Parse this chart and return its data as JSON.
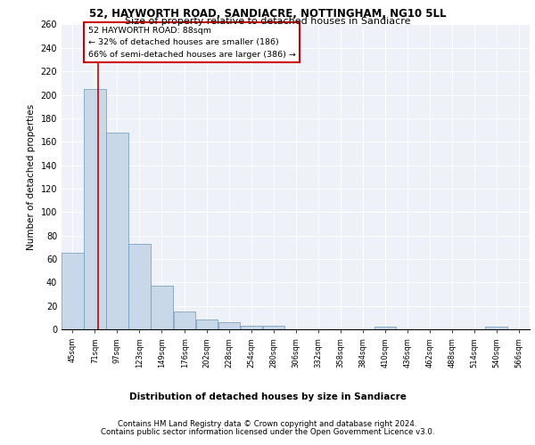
{
  "title1": "52, HAYWORTH ROAD, SANDIACRE, NOTTINGHAM, NG10 5LL",
  "title2": "Size of property relative to detached houses in Sandiacre",
  "xlabel": "Distribution of detached houses by size in Sandiacre",
  "ylabel": "Number of detached properties",
  "footer1": "Contains HM Land Registry data © Crown copyright and database right 2024.",
  "footer2": "Contains public sector information licensed under the Open Government Licence v3.0.",
  "annotation_line1": "52 HAYWORTH ROAD: 88sqm",
  "annotation_line2": "← 32% of detached houses are smaller (186)",
  "annotation_line3": "66% of semi-detached houses are larger (386) →",
  "property_size": 88,
  "bar_left_edges": [
    45,
    71,
    97,
    123,
    149,
    176,
    202,
    228,
    254,
    280,
    306,
    332,
    358,
    384,
    410,
    436,
    462,
    488,
    514,
    540,
    566
  ],
  "bar_widths": [
    26,
    26,
    26,
    26,
    26,
    26,
    26,
    26,
    26,
    26,
    26,
    26,
    26,
    26,
    26,
    26,
    26,
    26,
    26,
    26,
    26
  ],
  "bar_heights": [
    65,
    205,
    168,
    73,
    37,
    15,
    8,
    6,
    3,
    3,
    0,
    0,
    0,
    0,
    2,
    0,
    0,
    0,
    0,
    2,
    0
  ],
  "bar_color": "#c8d8e8",
  "bar_edge_color": "#6699bb",
  "vline_x": 88,
  "vline_color": "#cc0000",
  "annotation_box_color": "#cc0000",
  "bg_color": "#eef2f8",
  "grid_color": "#ffffff",
  "ylim": [
    0,
    260
  ],
  "yticks": [
    0,
    20,
    40,
    60,
    80,
    100,
    120,
    140,
    160,
    180,
    200,
    220,
    240,
    260
  ]
}
